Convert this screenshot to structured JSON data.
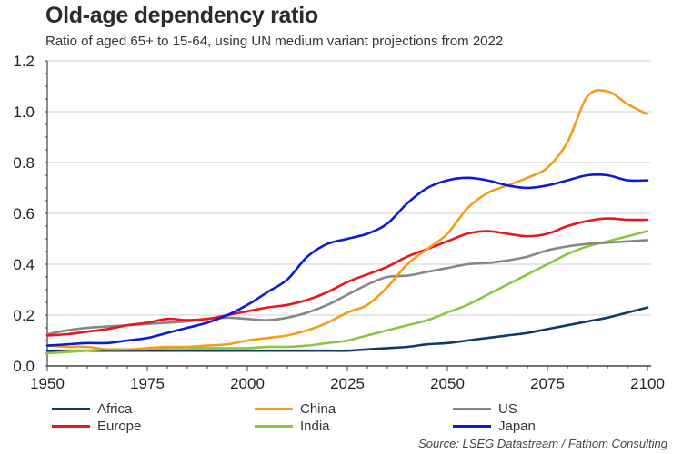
{
  "title": "Old-age dependency ratio",
  "subtitle": "Ratio of aged 65+ to 15-64, using UN medium variant projections from 2022",
  "source": "Source: LSEG Datastream / Fathom Consulting",
  "chart_data": {
    "type": "line",
    "title": "Old-age dependency ratio",
    "subtitle": "Ratio of aged 65+ to 15-64, using UN medium variant projections from 2022",
    "xlabel": "",
    "ylabel": "",
    "xlim": [
      1950,
      2101
    ],
    "ylim": [
      0.0,
      1.2
    ],
    "x_ticks": [
      "1950",
      "1975",
      "2000",
      "2025",
      "2050",
      "2075",
      "2100"
    ],
    "y_ticks": [
      "0.0",
      "0.2",
      "0.4",
      "0.6",
      "0.8",
      "1.0",
      "1.2"
    ],
    "grid": true,
    "legend_position": "bottom",
    "x": [
      1950,
      1955,
      1960,
      1965,
      1970,
      1975,
      1980,
      1985,
      1990,
      1995,
      2000,
      2005,
      2010,
      2015,
      2020,
      2025,
      2030,
      2035,
      2040,
      2045,
      2050,
      2055,
      2060,
      2065,
      2070,
      2075,
      2080,
      2085,
      2090,
      2095,
      2100
    ],
    "series": [
      {
        "name": "Africa",
        "color": "#0d3a66",
        "values": [
          0.06,
          0.06,
          0.06,
          0.06,
          0.06,
          0.06,
          0.06,
          0.06,
          0.06,
          0.06,
          0.06,
          0.06,
          0.06,
          0.06,
          0.06,
          0.06,
          0.065,
          0.07,
          0.075,
          0.085,
          0.09,
          0.1,
          0.11,
          0.12,
          0.13,
          0.145,
          0.16,
          0.175,
          0.19,
          0.21,
          0.23
        ]
      },
      {
        "name": "China",
        "color": "#f59c1a",
        "values": [
          0.08,
          0.075,
          0.075,
          0.065,
          0.065,
          0.07,
          0.075,
          0.075,
          0.08,
          0.085,
          0.1,
          0.11,
          0.12,
          0.14,
          0.17,
          0.21,
          0.24,
          0.31,
          0.4,
          0.46,
          0.52,
          0.62,
          0.68,
          0.71,
          0.74,
          0.78,
          0.88,
          1.06,
          1.08,
          1.03,
          0.99
        ]
      },
      {
        "name": "US",
        "color": "#868686",
        "values": [
          0.125,
          0.14,
          0.15,
          0.155,
          0.16,
          0.165,
          0.17,
          0.175,
          0.185,
          0.19,
          0.185,
          0.18,
          0.19,
          0.21,
          0.24,
          0.28,
          0.32,
          0.35,
          0.355,
          0.37,
          0.385,
          0.4,
          0.405,
          0.415,
          0.43,
          0.455,
          0.47,
          0.48,
          0.485,
          0.49,
          0.495
        ]
      },
      {
        "name": "Europe",
        "color": "#e8161b",
        "values": [
          0.12,
          0.125,
          0.135,
          0.145,
          0.16,
          0.17,
          0.185,
          0.18,
          0.185,
          0.2,
          0.215,
          0.23,
          0.24,
          0.26,
          0.29,
          0.33,
          0.36,
          0.39,
          0.43,
          0.46,
          0.49,
          0.52,
          0.53,
          0.52,
          0.51,
          0.52,
          0.55,
          0.57,
          0.58,
          0.575,
          0.575
        ]
      },
      {
        "name": "India",
        "color": "#8cc63f",
        "values": [
          0.05,
          0.055,
          0.06,
          0.065,
          0.065,
          0.065,
          0.07,
          0.07,
          0.07,
          0.07,
          0.07,
          0.075,
          0.075,
          0.08,
          0.09,
          0.1,
          0.12,
          0.14,
          0.16,
          0.18,
          0.21,
          0.24,
          0.28,
          0.32,
          0.36,
          0.4,
          0.44,
          0.47,
          0.49,
          0.51,
          0.53
        ]
      },
      {
        "name": "Japan",
        "color": "#0b19d8",
        "values": [
          0.08,
          0.085,
          0.09,
          0.09,
          0.1,
          0.11,
          0.13,
          0.15,
          0.17,
          0.2,
          0.24,
          0.29,
          0.34,
          0.43,
          0.48,
          0.5,
          0.52,
          0.56,
          0.64,
          0.7,
          0.73,
          0.74,
          0.73,
          0.71,
          0.7,
          0.71,
          0.73,
          0.75,
          0.75,
          0.73,
          0.73
        ]
      }
    ]
  }
}
